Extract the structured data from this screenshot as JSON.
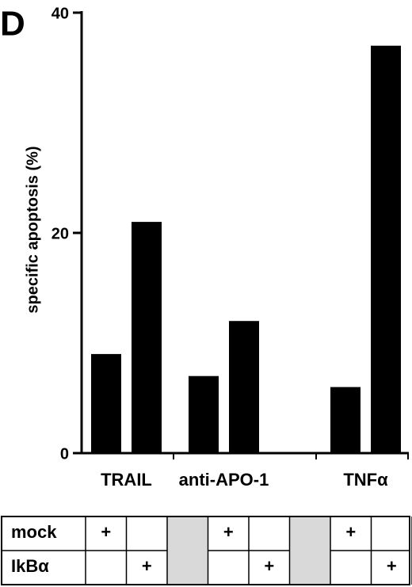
{
  "chart_data": {
    "type": "bar",
    "panel_label": "D",
    "y_label": "specific apoptosis (%)",
    "categories": [
      "TRAIL",
      "anti-APO-1",
      "TNFα"
    ],
    "series": [
      {
        "name": "mock",
        "color": "#000000",
        "values": [
          9,
          7,
          6
        ]
      },
      {
        "name": "IkBα",
        "color": "#000000",
        "values": [
          21,
          12,
          37
        ]
      }
    ],
    "condition_marker": "+",
    "ylim": [
      0,
      40
    ],
    "yticks": [
      0,
      20,
      40
    ]
  }
}
